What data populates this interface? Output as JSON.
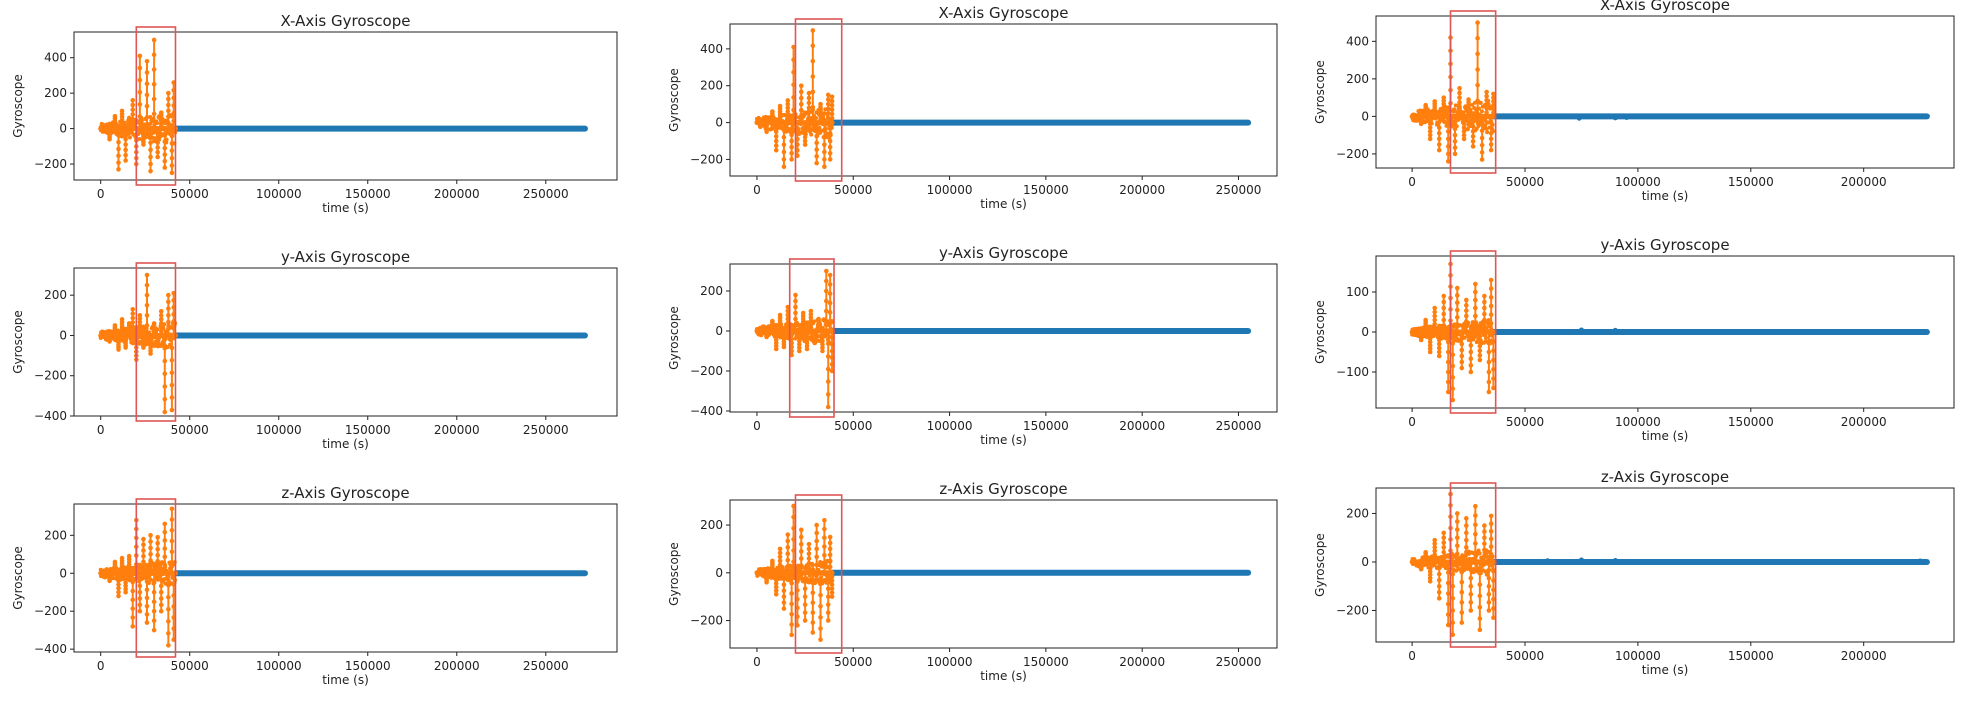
{
  "colors": {
    "baseline": "#1f77b4",
    "activity": "#ff7f0e",
    "highlight": "#e05555",
    "frame": "#222222"
  },
  "chart_data": [
    {
      "type": "scatter",
      "title": "X-Axis Gyroscope",
      "xlabel": "time (s)",
      "ylabel": "Gyroscope",
      "xlim": [
        -15000,
        290000
      ],
      "ylim": [
        -290,
        545
      ],
      "xticks": [
        0,
        50000,
        100000,
        150000,
        200000,
        250000
      ],
      "yticks": [
        -200,
        0,
        200,
        400
      ],
      "baseline_x_range": [
        42000,
        272000
      ],
      "activity_x_range": [
        0,
        42000
      ],
      "activity_peaks": [
        [
          5000,
          -60
        ],
        [
          8000,
          70
        ],
        [
          10000,
          -230
        ],
        [
          12000,
          100
        ],
        [
          14000,
          -180
        ],
        [
          16000,
          60
        ],
        [
          18000,
          160
        ],
        [
          20000,
          -200
        ],
        [
          22000,
          410
        ],
        [
          24000,
          -90
        ],
        [
          26000,
          380
        ],
        [
          28000,
          -240
        ],
        [
          30000,
          500
        ],
        [
          32000,
          -160
        ],
        [
          34000,
          90
        ],
        [
          36000,
          -220
        ],
        [
          38000,
          200
        ],
        [
          40000,
          -250
        ],
        [
          41000,
          260
        ]
      ],
      "highlight_x": [
        20000,
        42000
      ]
    },
    {
      "type": "scatter",
      "title": "y-Axis Gyroscope",
      "xlabel": "time (s)",
      "ylabel": "Gyroscope",
      "xlim": [
        -15000,
        290000
      ],
      "ylim": [
        -400,
        335
      ],
      "xticks": [
        0,
        50000,
        100000,
        150000,
        200000,
        250000
      ],
      "yticks": [
        -400,
        -200,
        0,
        200
      ],
      "baseline_x_range": [
        42000,
        272000
      ],
      "activity_x_range": [
        0,
        42000
      ],
      "activity_peaks": [
        [
          5000,
          -30
        ],
        [
          8000,
          50
        ],
        [
          10000,
          -70
        ],
        [
          12000,
          80
        ],
        [
          14000,
          -60
        ],
        [
          16000,
          60
        ],
        [
          18000,
          130
        ],
        [
          20000,
          -120
        ],
        [
          22000,
          100
        ],
        [
          24000,
          -60
        ],
        [
          26000,
          300
        ],
        [
          28000,
          -90
        ],
        [
          30000,
          60
        ],
        [
          32000,
          -50
        ],
        [
          34000,
          120
        ],
        [
          36000,
          -380
        ],
        [
          38000,
          200
        ],
        [
          40000,
          -370
        ],
        [
          41000,
          210
        ]
      ],
      "highlight_x": [
        20000,
        42000
      ]
    },
    {
      "type": "scatter",
      "title": "z-Axis Gyroscope",
      "xlabel": "time (s)",
      "ylabel": "Gyroscope",
      "xlim": [
        -15000,
        290000
      ],
      "ylim": [
        -415,
        365
      ],
      "xticks": [
        0,
        50000,
        100000,
        150000,
        200000,
        250000
      ],
      "yticks": [
        -400,
        -200,
        0,
        200
      ],
      "baseline_x_range": [
        42000,
        272000
      ],
      "activity_x_range": [
        0,
        42000
      ],
      "activity_peaks": [
        [
          5000,
          -40
        ],
        [
          8000,
          60
        ],
        [
          10000,
          -120
        ],
        [
          12000,
          80
        ],
        [
          14000,
          -100
        ],
        [
          16000,
          90
        ],
        [
          18000,
          -280
        ],
        [
          20000,
          280
        ],
        [
          22000,
          -200
        ],
        [
          24000,
          180
        ],
        [
          26000,
          -260
        ],
        [
          28000,
          200
        ],
        [
          30000,
          -300
        ],
        [
          32000,
          190
        ],
        [
          34000,
          -200
        ],
        [
          36000,
          260
        ],
        [
          38000,
          -380
        ],
        [
          40000,
          340
        ],
        [
          41000,
          -350
        ]
      ],
      "highlight_x": [
        20000,
        42000
      ]
    },
    {
      "type": "scatter",
      "title": "X-Axis Gyroscope",
      "xlabel": "time (s)",
      "ylabel": "Gyroscope",
      "xlim": [
        -14000,
        270000
      ],
      "ylim": [
        -290,
        535
      ],
      "xticks": [
        0,
        50000,
        100000,
        150000,
        200000,
        250000
      ],
      "yticks": [
        -200,
        0,
        200,
        400
      ],
      "baseline_x_range": [
        39000,
        255000
      ],
      "activity_x_range": [
        0,
        39000
      ],
      "activity_peaks": [
        [
          5000,
          -50
        ],
        [
          8000,
          60
        ],
        [
          10000,
          -150
        ],
        [
          12000,
          90
        ],
        [
          14000,
          -240
        ],
        [
          16000,
          120
        ],
        [
          18000,
          -200
        ],
        [
          19000,
          410
        ],
        [
          21000,
          -180
        ],
        [
          23000,
          200
        ],
        [
          25000,
          -120
        ],
        [
          27000,
          160
        ],
        [
          29000,
          500
        ],
        [
          31000,
          -220
        ],
        [
          33000,
          100
        ],
        [
          35000,
          -240
        ],
        [
          37000,
          150
        ],
        [
          38000,
          -200
        ],
        [
          39000,
          140
        ]
      ],
      "highlight_x": [
        20000,
        44000
      ]
    },
    {
      "type": "scatter",
      "title": "y-Axis Gyroscope",
      "xlabel": "time (s)",
      "ylabel": "Gyroscope",
      "xlim": [
        -14000,
        270000
      ],
      "ylim": [
        -405,
        335
      ],
      "xticks": [
        0,
        50000,
        100000,
        150000,
        200000,
        250000
      ],
      "yticks": [
        -400,
        -200,
        0,
        200
      ],
      "baseline_x_range": [
        39000,
        255000
      ],
      "activity_x_range": [
        0,
        39000
      ],
      "activity_peaks": [
        [
          5000,
          -30
        ],
        [
          8000,
          50
        ],
        [
          10000,
          -90
        ],
        [
          12000,
          80
        ],
        [
          14000,
          -80
        ],
        [
          16000,
          120
        ],
        [
          18000,
          -120
        ],
        [
          20000,
          180
        ],
        [
          22000,
          -100
        ],
        [
          24000,
          90
        ],
        [
          26000,
          -90
        ],
        [
          28000,
          100
        ],
        [
          30000,
          -60
        ],
        [
          32000,
          60
        ],
        [
          34000,
          -100
        ],
        [
          36000,
          300
        ],
        [
          37000,
          -380
        ],
        [
          38000,
          280
        ],
        [
          39000,
          -200
        ]
      ],
      "highlight_x": [
        17000,
        40000
      ]
    },
    {
      "type": "scatter",
      "title": "z-Axis Gyroscope",
      "xlabel": "time (s)",
      "ylabel": "Gyroscope",
      "xlim": [
        -14000,
        270000
      ],
      "ylim": [
        -315,
        305
      ],
      "xticks": [
        0,
        50000,
        100000,
        150000,
        200000,
        250000
      ],
      "yticks": [
        -200,
        0,
        200
      ],
      "baseline_x_range": [
        39000,
        255000
      ],
      "activity_x_range": [
        0,
        39000
      ],
      "activity_peaks": [
        [
          5000,
          -40
        ],
        [
          8000,
          50
        ],
        [
          10000,
          -90
        ],
        [
          12000,
          100
        ],
        [
          14000,
          -150
        ],
        [
          16000,
          160
        ],
        [
          18000,
          -260
        ],
        [
          19000,
          280
        ],
        [
          21000,
          -220
        ],
        [
          23000,
          180
        ],
        [
          25000,
          -200
        ],
        [
          27000,
          120
        ],
        [
          29000,
          -250
        ],
        [
          31000,
          200
        ],
        [
          33000,
          -280
        ],
        [
          35000,
          220
        ],
        [
          37000,
          -200
        ],
        [
          38000,
          150
        ],
        [
          39000,
          -100
        ]
      ],
      "highlight_x": [
        20000,
        44000
      ]
    },
    {
      "type": "scatter",
      "title": "X-Axis Gyroscope",
      "xlabel": "time (s)",
      "ylabel": "Gyroscope",
      "xlim": [
        -16000,
        240000
      ],
      "ylim": [
        -275,
        535
      ],
      "xticks": [
        0,
        50000,
        100000,
        150000,
        200000
      ],
      "yticks": [
        -200,
        0,
        200,
        400
      ],
      "baseline_x_range": [
        36000,
        228000
      ],
      "activity_x_range": [
        0,
        36000
      ],
      "activity_peaks": [
        [
          4000,
          -40
        ],
        [
          6000,
          60
        ],
        [
          8000,
          -120
        ],
        [
          10000,
          80
        ],
        [
          12000,
          -180
        ],
        [
          14000,
          100
        ],
        [
          16000,
          -240
        ],
        [
          17000,
          420
        ],
        [
          19000,
          -200
        ],
        [
          21000,
          150
        ],
        [
          23000,
          -120
        ],
        [
          25000,
          90
        ],
        [
          27000,
          -160
        ],
        [
          29000,
          500
        ],
        [
          31000,
          -230
        ],
        [
          33000,
          130
        ],
        [
          35000,
          -180
        ],
        [
          36000,
          120
        ]
      ],
      "highlight_x": [
        17000,
        37000
      ],
      "baseline_blips": [
        [
          74000,
          -10
        ],
        [
          90000,
          -8
        ],
        [
          95000,
          -6
        ]
      ]
    },
    {
      "type": "scatter",
      "title": "y-Axis Gyroscope",
      "xlabel": "time (s)",
      "ylabel": "Gyroscope",
      "xlim": [
        -16000,
        240000
      ],
      "ylim": [
        -190,
        190
      ],
      "xticks": [
        0,
        50000,
        100000,
        150000,
        200000
      ],
      "yticks": [
        -100,
        0,
        100
      ],
      "baseline_x_range": [
        36000,
        228000
      ],
      "activity_x_range": [
        0,
        36000
      ],
      "activity_peaks": [
        [
          4000,
          -20
        ],
        [
          6000,
          30
        ],
        [
          8000,
          -50
        ],
        [
          10000,
          60
        ],
        [
          12000,
          -60
        ],
        [
          14000,
          90
        ],
        [
          16000,
          -150
        ],
        [
          17000,
          170
        ],
        [
          18000,
          -170
        ],
        [
          20000,
          110
        ],
        [
          22000,
          -90
        ],
        [
          24000,
          80
        ],
        [
          26000,
          -100
        ],
        [
          28000,
          120
        ],
        [
          30000,
          -70
        ],
        [
          32000,
          90
        ],
        [
          34000,
          -150
        ],
        [
          35000,
          130
        ],
        [
          36000,
          -140
        ]
      ],
      "highlight_x": [
        17000,
        37000
      ],
      "baseline_blips": [
        [
          75000,
          5
        ],
        [
          90000,
          4
        ]
      ]
    },
    {
      "type": "scatter",
      "title": "z-Axis Gyroscope",
      "xlabel": "time (s)",
      "ylabel": "Gyroscope",
      "xlim": [
        -16000,
        240000
      ],
      "ylim": [
        -330,
        305
      ],
      "xticks": [
        0,
        50000,
        100000,
        150000,
        200000
      ],
      "yticks": [
        -200,
        0,
        200
      ],
      "baseline_x_range": [
        36000,
        228000
      ],
      "activity_x_range": [
        0,
        36000
      ],
      "activity_peaks": [
        [
          4000,
          -30
        ],
        [
          6000,
          40
        ],
        [
          8000,
          -80
        ],
        [
          10000,
          90
        ],
        [
          12000,
          -150
        ],
        [
          14000,
          120
        ],
        [
          16000,
          -260
        ],
        [
          17000,
          280
        ],
        [
          18000,
          -300
        ],
        [
          20000,
          200
        ],
        [
          22000,
          -250
        ],
        [
          24000,
          180
        ],
        [
          26000,
          -200
        ],
        [
          28000,
          230
        ],
        [
          30000,
          -280
        ],
        [
          32000,
          150
        ],
        [
          34000,
          -200
        ],
        [
          35000,
          190
        ],
        [
          36000,
          -230
        ]
      ],
      "highlight_x": [
        17000,
        37000
      ],
      "baseline_blips": [
        [
          60000,
          5
        ],
        [
          75000,
          8
        ],
        [
          90000,
          6
        ],
        [
          225000,
          4
        ]
      ]
    }
  ]
}
